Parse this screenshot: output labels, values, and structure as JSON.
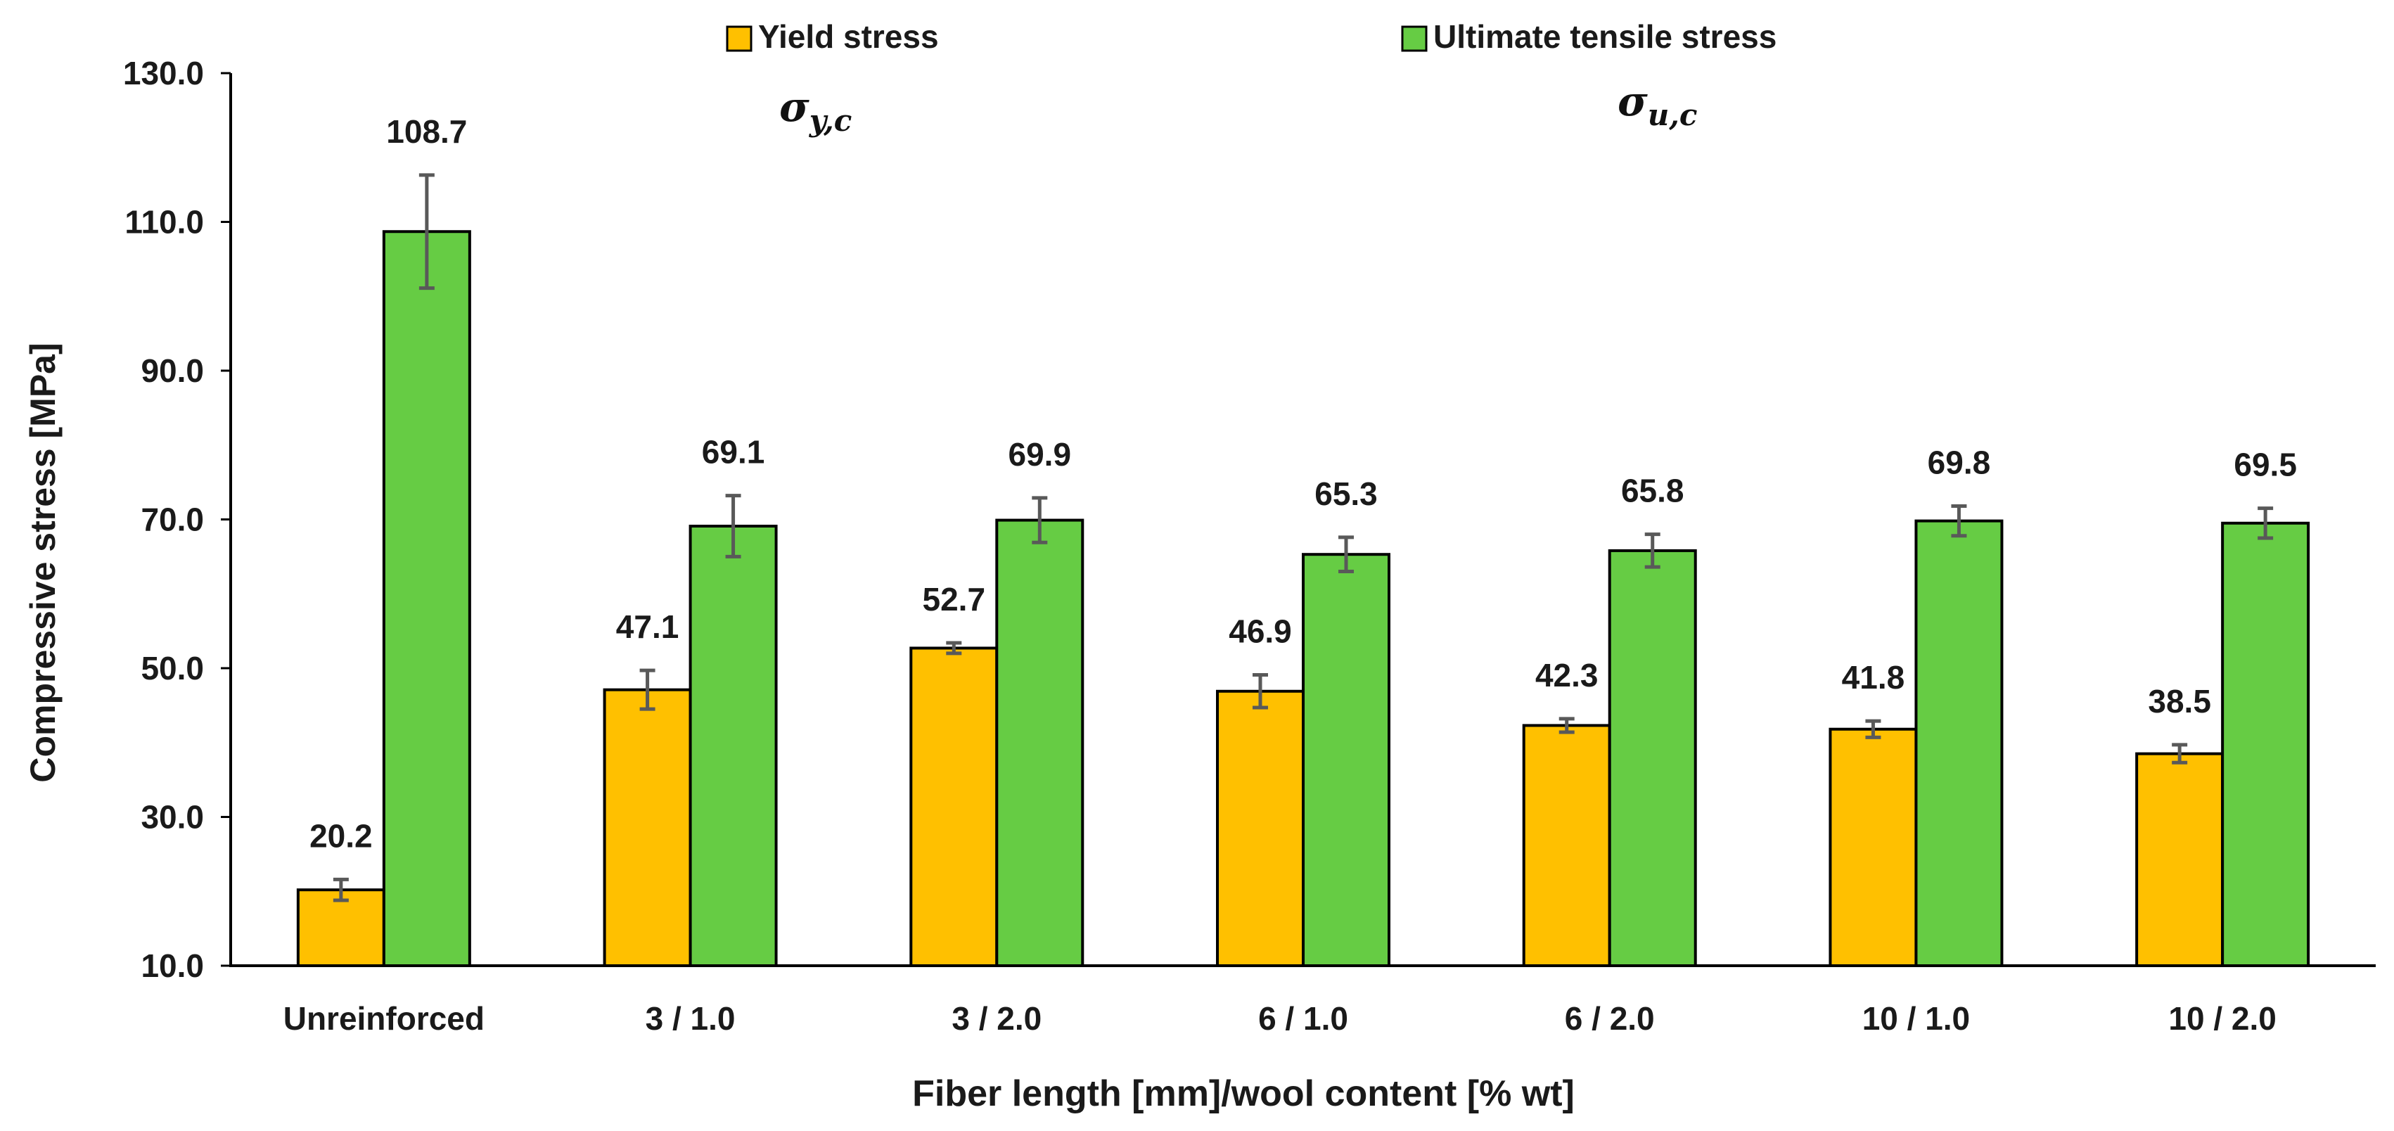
{
  "chart_data": {
    "type": "bar",
    "ylabel": "Compressive stress [MPa]",
    "xlabel": "Fiber length [mm]/wool content [% wt]",
    "ylim": [
      10,
      130
    ],
    "yticks": [
      10,
      30,
      50,
      70,
      90,
      110,
      130
    ],
    "ytick_labels": [
      "10.0",
      "30.0",
      "50.0",
      "70.0",
      "90.0",
      "110.0",
      "130.0"
    ],
    "grid": false,
    "legend_position": "top",
    "categories": [
      "Unreinforced",
      "3 / 1.0",
      "3 / 2.0",
      "6 / 1.0",
      "6 / 2.0",
      "10 / 1.0",
      "10 / 2.0"
    ],
    "series": [
      {
        "name": "Yield stress",
        "symbol": "σ",
        "symbol_sub": "y,c",
        "color": "#FFC000",
        "values": [
          20.2,
          47.1,
          52.7,
          46.9,
          42.3,
          41.8,
          38.5
        ],
        "labels": [
          "20.2",
          "47.1",
          "52.7",
          "46.9",
          "42.3",
          "41.8",
          "38.5"
        ],
        "errors": [
          1.4,
          2.6,
          0.7,
          2.2,
          0.9,
          1.1,
          1.2
        ]
      },
      {
        "name": "Ultimate tensile stress",
        "symbol": "σ",
        "symbol_sub": "u,c",
        "color": "#66CC44",
        "values": [
          108.7,
          69.1,
          69.9,
          65.3,
          65.8,
          69.8,
          69.5
        ],
        "labels": [
          "108.7",
          "69.1",
          "69.9",
          "65.3",
          "65.8",
          "69.8",
          "69.5"
        ],
        "errors": [
          7.6,
          4.1,
          3.0,
          2.3,
          2.2,
          2.0,
          2.0
        ]
      }
    ],
    "error_bar_color": "#595959",
    "bar_outline_color": "#000000",
    "axis_color": "#000000"
  }
}
